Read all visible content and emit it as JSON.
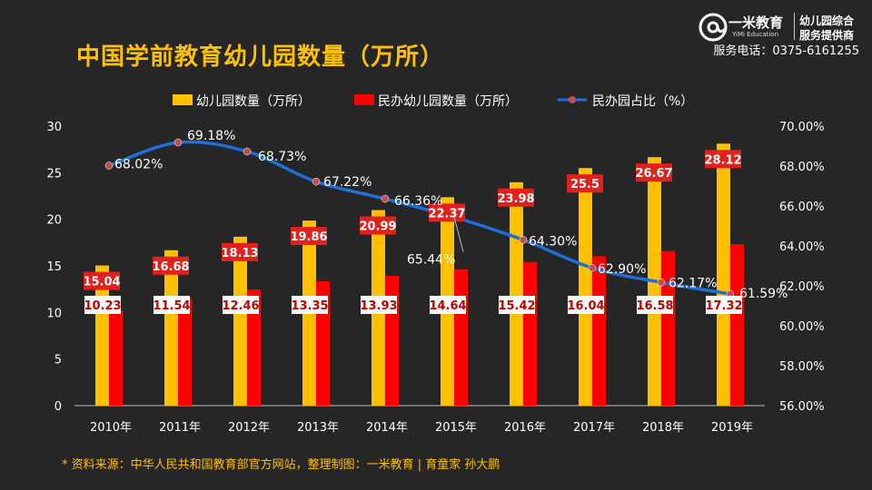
{
  "header": {
    "title": "中国学前教育幼儿园数量（万所）",
    "phone": "服务电话：0375-6161255"
  },
  "logo": {
    "brand": "一米教育",
    "brand_en": "YiMi Education",
    "slogan_line1": "幼儿园综合",
    "slogan_line2": "服务提供商"
  },
  "footnote": "* 资料来源：中华人民共和国教育部官方网站，整理制图：一米教育 | 育童家  孙大鹏",
  "colors": {
    "total": "#FFC000",
    "private": "#FF0000",
    "ratio": "#1E6FD9",
    "ratio_marker": "#C0504D",
    "title": "#FFC000"
  },
  "chart_data": {
    "type": "bar",
    "title": "中国学前教育幼儿园数量（万所）",
    "categories": [
      "2010年",
      "2011年",
      "2012年",
      "2013年",
      "2014年",
      "2015年",
      "2016年",
      "2017年",
      "2018年",
      "2019年"
    ],
    "series": [
      {
        "name": "幼儿园数量（万所）",
        "type": "bar",
        "axis": "left",
        "values": [
          15.04,
          16.68,
          18.13,
          19.86,
          20.99,
          22.37,
          23.98,
          25.5,
          26.67,
          28.12
        ],
        "labels": [
          "15.04",
          "16.68",
          "18.13",
          "19.86",
          "20.99",
          "22.37",
          "23.98",
          "25.5",
          "26.67",
          "28.12"
        ]
      },
      {
        "name": "民办幼儿园数量（万所）",
        "type": "bar",
        "axis": "left",
        "values": [
          10.23,
          11.54,
          12.46,
          13.35,
          13.93,
          14.64,
          15.42,
          16.04,
          16.58,
          17.32
        ],
        "labels": [
          "10.23",
          "11.54",
          "12.46",
          "13.35",
          "13.93",
          "14.64",
          "15.42",
          "16.04",
          "16.58",
          "17.32"
        ]
      },
      {
        "name": "民办园占比（%）",
        "type": "line",
        "axis": "right",
        "values": [
          68.02,
          69.18,
          68.73,
          67.22,
          66.36,
          65.44,
          64.3,
          62.9,
          62.17,
          61.59
        ],
        "labels": [
          "68.02%",
          "69.18%",
          "68.73%",
          "67.22%",
          "66.36%",
          "65.44%",
          "64.30%",
          "62.90%",
          "62.17%",
          "61.59%"
        ]
      }
    ],
    "y_left": {
      "min": 0,
      "max": 30,
      "ticks": [
        "0",
        "5",
        "10",
        "15",
        "20",
        "25",
        "30"
      ]
    },
    "y_right": {
      "min": 56,
      "max": 70,
      "ticks": [
        "56.00%",
        "58.00%",
        "60.00%",
        "62.00%",
        "64.00%",
        "66.00%",
        "68.00%",
        "70.00%"
      ]
    },
    "grid": false,
    "legend": "top"
  }
}
